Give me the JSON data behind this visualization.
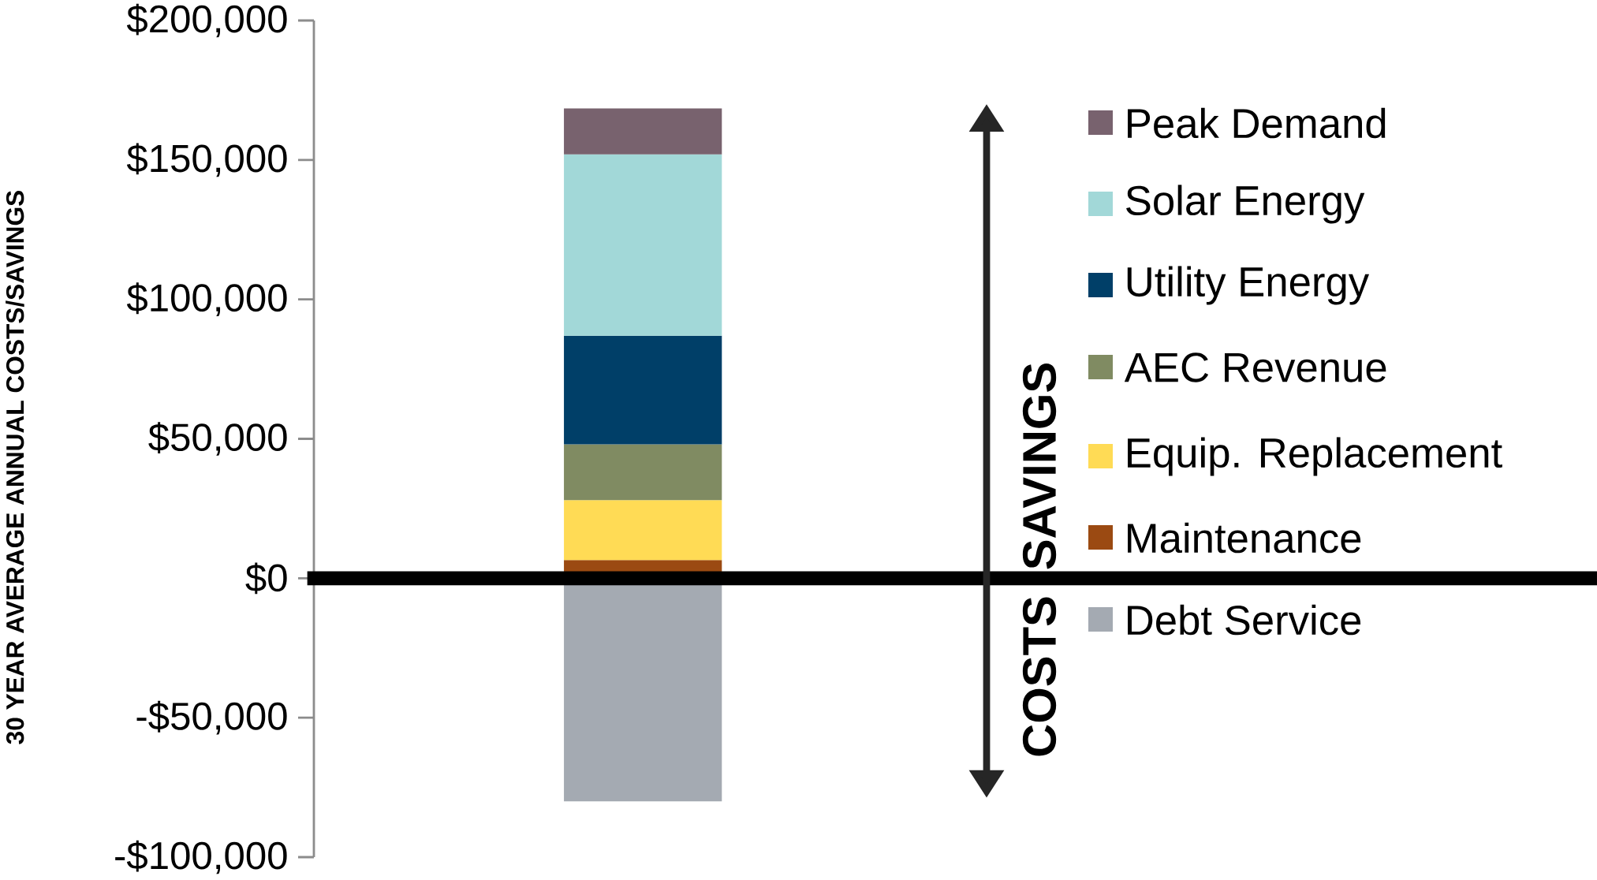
{
  "chart_data": {
    "type": "bar",
    "stacked": true,
    "ylabel": "30 YEAR AVERAGE ANNUAL COSTS/SAVINGS",
    "categories": [
      null
    ],
    "series": [
      {
        "name": "Debt Service",
        "color": "#a4aab2",
        "values": [
          -80000
        ]
      },
      {
        "name": "Maintenance",
        "color": "#9b4a12",
        "values": [
          6500
        ]
      },
      {
        "name": "Equip. Replacement",
        "color": "#ffdb55",
        "values": [
          21500
        ]
      },
      {
        "name": "AEC Revenue",
        "color": "#808b62",
        "values": [
          20000
        ]
      },
      {
        "name": "Utility Energy",
        "color": "#003f68",
        "values": [
          39000
        ]
      },
      {
        "name": "Solar Energy",
        "color": "#a2d8d8",
        "values": [
          65000
        ]
      },
      {
        "name": "Peak Demand",
        "color": "#78626e",
        "values": [
          16500
        ]
      }
    ],
    "ylim": [
      -100000,
      200000
    ],
    "yticks": [
      {
        "value": -100000,
        "label": "-$100,000"
      },
      {
        "value": -50000,
        "label": "-$50,000"
      },
      {
        "value": 0,
        "label": "$0"
      },
      {
        "value": 50000,
        "label": "$50,000"
      },
      {
        "value": 100000,
        "label": "$100,000"
      },
      {
        "value": 150000,
        "label": "$150,000"
      },
      {
        "value": 200000,
        "label": "$200,000"
      }
    ],
    "ref_lines": [
      {
        "axis": "y",
        "value": 0,
        "color": "#000000"
      }
    ],
    "annotations": [
      "SAVINGS",
      "COSTS"
    ],
    "legend": "right"
  }
}
